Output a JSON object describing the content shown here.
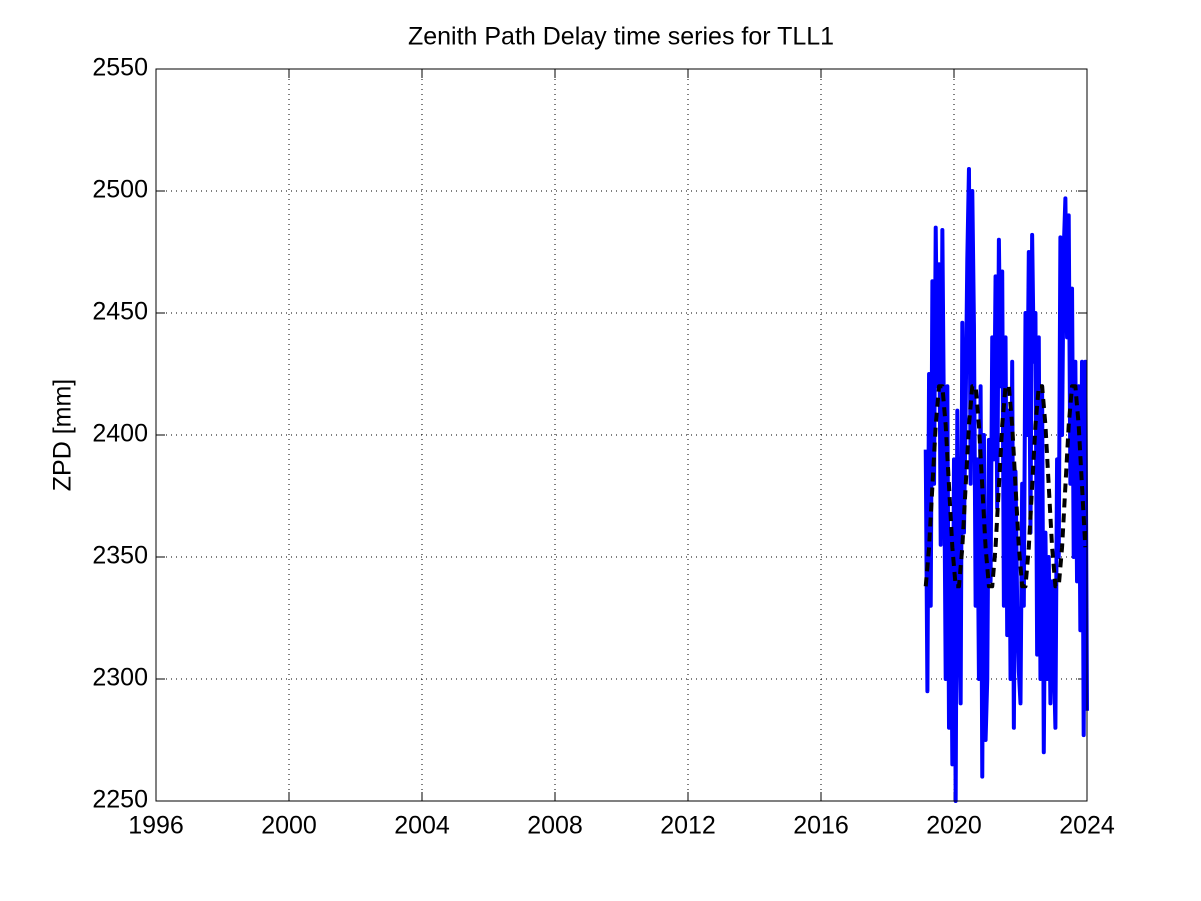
{
  "chart_data": {
    "type": "line",
    "title": "Zenith Path Delay time series for TLL1",
    "y_label": "ZPD [mm]",
    "xlim": [
      1996,
      2024
    ],
    "xticks": [
      1996,
      2000,
      2004,
      2008,
      2012,
      2016,
      2020,
      2024
    ],
    "ylim": [
      2250,
      2550
    ],
    "yticks": [
      2250,
      2300,
      2350,
      2400,
      2450,
      2500,
      2550
    ],
    "grid": true,
    "series": [
      {
        "color": "#0000ff",
        "dashed": false,
        "x": [
          2019.15,
          2019.2,
          2019.25,
          2019.3,
          2019.35,
          2019.4,
          2019.45,
          2019.5,
          2019.55,
          2019.6,
          2019.65,
          2019.7,
          2019.75,
          2019.8,
          2019.85,
          2019.9,
          2019.95,
          2020,
          2020.05,
          2020.1,
          2020.15,
          2020.2,
          2020.25,
          2020.3,
          2020.35,
          2020.4,
          2020.45,
          2020.5,
          2020.55,
          2020.6,
          2020.65,
          2020.7,
          2020.75,
          2020.8,
          2020.85,
          2020.9,
          2020.95,
          2021,
          2021.05,
          2021.1,
          2021.15,
          2021.2,
          2021.25,
          2021.3,
          2021.35,
          2021.4,
          2021.45,
          2021.5,
          2021.55,
          2021.6,
          2021.65,
          2021.7,
          2021.75,
          2021.8,
          2021.85,
          2021.9,
          2021.95,
          2022,
          2022.05,
          2022.1,
          2022.15,
          2022.2,
          2022.25,
          2022.3,
          2022.35,
          2022.4,
          2022.45,
          2022.5,
          2022.55,
          2022.6,
          2022.65,
          2022.7,
          2022.75,
          2022.8,
          2022.85,
          2022.9,
          2022.95,
          2023,
          2023.05,
          2023.1,
          2023.15,
          2023.2,
          2023.25,
          2023.3,
          2023.35,
          2023.4,
          2023.45,
          2023.5,
          2023.55,
          2023.6,
          2023.65,
          2023.7,
          2023.75,
          2023.8,
          2023.85,
          2023.9,
          2023.95,
          2024
        ],
        "values": [
          2394,
          2295,
          2425,
          2330,
          2463,
          2380,
          2485,
          2420,
          2470,
          2355,
          2484,
          2400,
          2300,
          2420,
          2280,
          2360,
          2265,
          2390,
          2250,
          2410,
          2330,
          2290,
          2446,
          2360,
          2410,
          2472,
          2509,
          2380,
          2500,
          2445,
          2330,
          2390,
          2300,
          2420,
          2260,
          2400,
          2275,
          2300,
          2398,
          2340,
          2440,
          2390,
          2465,
          2370,
          2480,
          2420,
          2467,
          2330,
          2440,
          2318,
          2410,
          2300,
          2430,
          2280,
          2385,
          2330,
          2303,
          2290,
          2380,
          2330,
          2450,
          2400,
          2475,
          2360,
          2482,
          2430,
          2450,
          2310,
          2440,
          2300,
          2420,
          2270,
          2360,
          2300,
          2350,
          2290,
          2340,
          2310,
          2280,
          2390,
          2350,
          2481,
          2400,
          2476,
          2497,
          2440,
          2490,
          2380,
          2460,
          2350,
          2430,
          2340,
          2420,
          2320,
          2430,
          2277,
          2430,
          2287
        ]
      },
      {
        "color": "#000000",
        "dashed": true,
        "x": [
          2019.15,
          2019.25,
          2019.35,
          2019.45,
          2019.55,
          2019.65,
          2019.75,
          2019.85,
          2019.95,
          2020.05,
          2020.15,
          2020.25,
          2020.35,
          2020.45,
          2020.55,
          2020.65,
          2020.75,
          2020.85,
          2020.95,
          2021.05,
          2021.15,
          2021.25,
          2021.35,
          2021.45,
          2021.55,
          2021.65,
          2021.75,
          2021.85,
          2021.95,
          2022.05,
          2022.15,
          2022.25,
          2022.35,
          2022.45,
          2022.55,
          2022.65,
          2022.75,
          2022.85,
          2022.95,
          2023.05,
          2023.15,
          2023.25,
          2023.35,
          2023.45,
          2023.55,
          2023.65,
          2023.75,
          2023.85,
          2023.95
        ],
        "values": [
          2338,
          2354,
          2379,
          2404,
          2420,
          2420,
          2404,
          2379,
          2354,
          2338,
          2338,
          2354,
          2379,
          2404,
          2420,
          2420,
          2404,
          2379,
          2354,
          2338,
          2338,
          2354,
          2379,
          2404,
          2420,
          2420,
          2404,
          2379,
          2354,
          2338,
          2338,
          2354,
          2379,
          2404,
          2420,
          2420,
          2404,
          2379,
          2354,
          2338,
          2338,
          2354,
          2379,
          2404,
          2420,
          2420,
          2404,
          2379,
          2354
        ]
      }
    ]
  }
}
